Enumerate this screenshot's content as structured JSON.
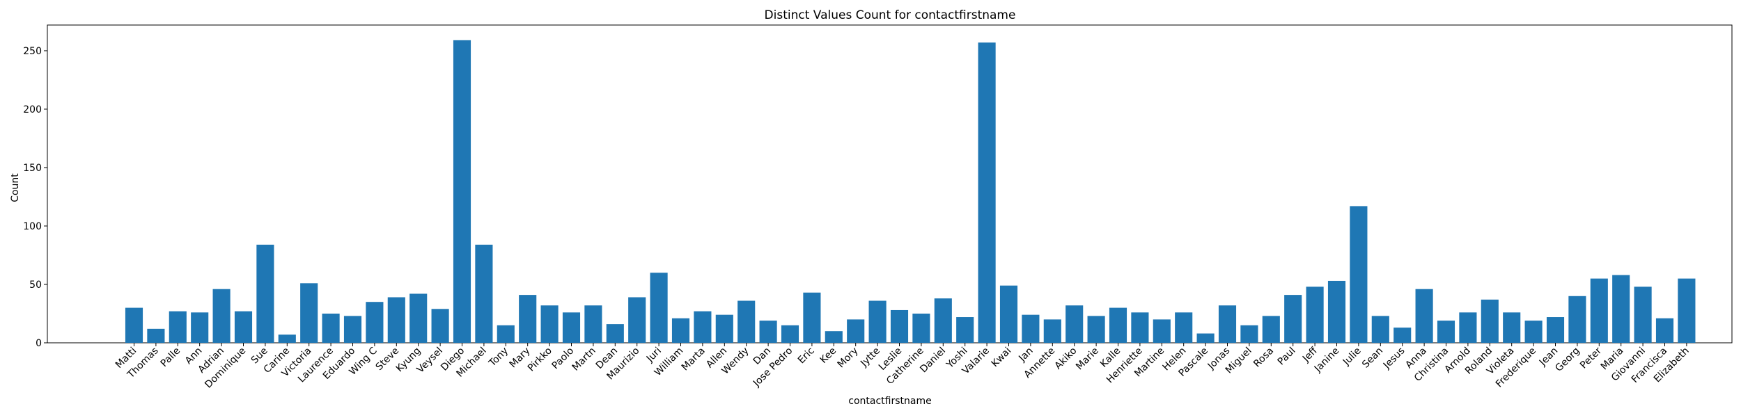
{
  "chart_data": {
    "type": "bar",
    "title": "Distinct Values Count for contactfirstname",
    "xlabel": "contactfirstname",
    "ylabel": "Count",
    "ylim": [
      0,
      272
    ],
    "yticks": [
      0,
      50,
      100,
      150,
      200,
      250
    ],
    "grid": false,
    "legend": "none",
    "bar_color": "#1f77b4",
    "categories": [
      "Matti",
      "Thomas",
      "Palle",
      "Ann",
      "Adrian",
      "Dominique",
      "Sue",
      "Carine",
      "Victoria",
      "Laurence",
      "Eduardo",
      "Wing C",
      "Steve",
      "Kyung",
      "Veysel",
      "Diego",
      "Michael",
      "Tony",
      "Mary",
      "Pirkko",
      "Paolo",
      "Martn",
      "Dean",
      "Maurizio",
      "Juri",
      "William",
      "Marta",
      "Allen",
      "Wendy",
      "Dan",
      "Jose Pedro",
      "Eric",
      "Kee",
      "Mory",
      "Jytte",
      "Leslie",
      "Catherine",
      "Daniel",
      "Yoshi",
      "Valarie",
      "Kwai",
      "Jan",
      "Annette",
      "Akiko",
      "Marie",
      "Kalle",
      "Henriette",
      "Martine",
      "Helen",
      "Pascale",
      "Jonas",
      "Miguel",
      "Rosa",
      "Paul",
      "Jeff",
      "Janine",
      "Julie",
      "Sean",
      "Jesus",
      "Anna",
      "Christina",
      "Arnold",
      "Roland",
      "Violeta",
      "Frederique",
      "Jean",
      "Georg",
      "Peter",
      "Maria",
      "Giovanni",
      "Francisca",
      "Elizabeth"
    ],
    "values": [
      30,
      12,
      27,
      26,
      46,
      27,
      84,
      7,
      51,
      25,
      23,
      35,
      39,
      42,
      29,
      259,
      84,
      15,
      41,
      32,
      26,
      32,
      16,
      39,
      60,
      21,
      27,
      24,
      36,
      19,
      15,
      43,
      10,
      20,
      36,
      28,
      25,
      38,
      22,
      257,
      49,
      24,
      20,
      32,
      23,
      30,
      26,
      20,
      26,
      8,
      32,
      15,
      23,
      41,
      48,
      53,
      117,
      23,
      13,
      46,
      19,
      26,
      37,
      26,
      19,
      22,
      40,
      55,
      58,
      48,
      21,
      55
    ]
  }
}
